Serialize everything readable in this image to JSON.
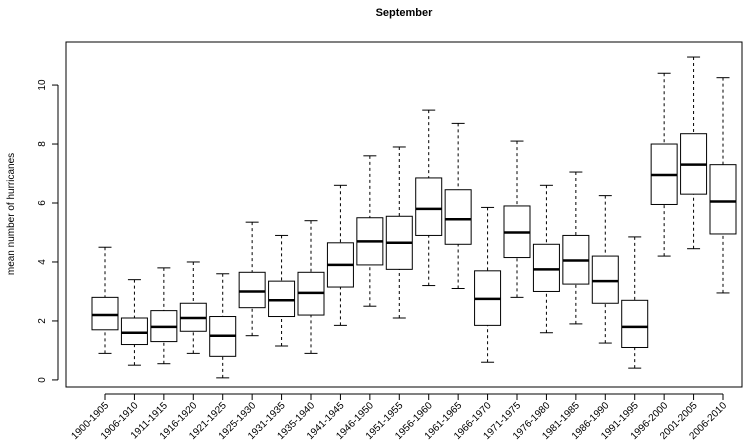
{
  "chart_data": {
    "type": "box",
    "title": "September",
    "ylabel": "mean number of hurricanes",
    "categories": [
      "1900-1905",
      "1906-1910",
      "1911-1915",
      "1916-1920",
      "1921-1925",
      "1925-1930",
      "1931-1935",
      "1935-1940",
      "1941-1945",
      "1946-1950",
      "1951-1955",
      "1956-1960",
      "1961-1965",
      "1966-1970",
      "1971-1975",
      "1976-1980",
      "1981-1985",
      "1986-1990",
      "1991-1995",
      "1996-2000",
      "2001-2005",
      "2006-2010"
    ],
    "low": [
      0.9,
      0.5,
      0.55,
      0.9,
      0.07,
      1.5,
      1.15,
      0.9,
      1.85,
      2.5,
      2.1,
      3.2,
      3.1,
      0.6,
      2.8,
      1.6,
      1.9,
      1.25,
      0.4,
      4.2,
      4.45,
      2.95
    ],
    "q1": [
      1.7,
      1.2,
      1.3,
      1.65,
      0.8,
      2.45,
      2.15,
      2.2,
      3.15,
      3.9,
      3.75,
      4.9,
      4.6,
      1.85,
      4.15,
      3.0,
      3.25,
      2.6,
      1.1,
      5.95,
      6.3,
      4.95
    ],
    "median": [
      2.2,
      1.6,
      1.8,
      2.1,
      1.5,
      3.0,
      2.7,
      2.95,
      3.9,
      4.7,
      4.65,
      5.8,
      5.45,
      2.75,
      5.0,
      3.75,
      4.05,
      3.35,
      1.8,
      6.95,
      7.3,
      6.05
    ],
    "q3": [
      2.8,
      2.1,
      2.35,
      2.6,
      2.15,
      3.65,
      3.35,
      3.65,
      4.65,
      5.5,
      5.55,
      6.85,
      6.45,
      3.7,
      5.9,
      4.6,
      4.9,
      4.2,
      2.7,
      8.0,
      8.35,
      7.3
    ],
    "high": [
      4.5,
      3.4,
      3.8,
      4.0,
      3.6,
      5.35,
      4.9,
      5.4,
      6.6,
      7.6,
      7.9,
      9.15,
      8.7,
      5.85,
      8.1,
      6.6,
      7.05,
      6.25,
      4.85,
      10.4,
      10.95,
      10.25
    ],
    "color": "#000000",
    "ylim": [
      -0.24,
      11.46
    ],
    "yticks": [
      0,
      2,
      4,
      6,
      8,
      10
    ]
  }
}
